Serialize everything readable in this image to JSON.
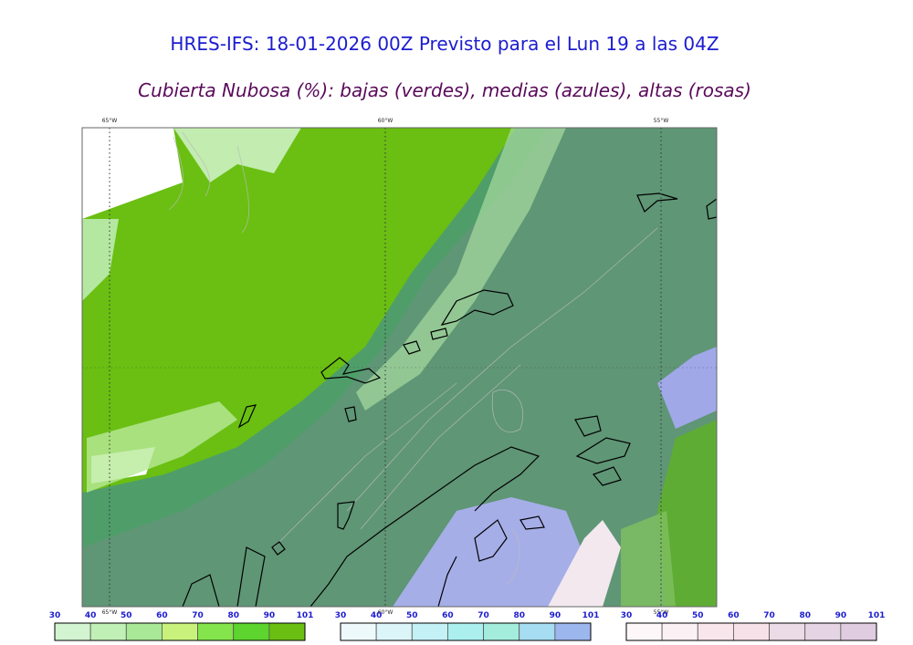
{
  "header": {
    "title": "HRES-IFS: 18-01-2026 00Z Previsto para el Lun 19 a las 04Z",
    "subtitle": "Cubierta Nubosa (%): bajas (verdes), medias (azules), altas (rosas)"
  },
  "map": {
    "lon_labels_top": [
      "65°W",
      "60°W",
      "55°W"
    ],
    "lon_labels_bottom": [
      "65°W",
      "60°W",
      "55°W"
    ]
  },
  "colorbars": [
    {
      "ticks": [
        30,
        40,
        50,
        60,
        70,
        80,
        90,
        101
      ],
      "colors": [
        "#d2f4d0",
        "#c0f0b6",
        "#a8e896",
        "#c8f27c",
        "#84e44c",
        "#5ed42e",
        "#6abf12"
      ]
    },
    {
      "ticks": [
        30,
        40,
        50,
        60,
        70,
        80,
        90,
        101
      ],
      "colors": [
        "#eef9fc",
        "#dcf5f8",
        "#c4f1f5",
        "#acefef",
        "#a4ecdc",
        "#a6ddf2",
        "#9cb6ee"
      ]
    },
    {
      "ticks": [
        30,
        40,
        50,
        60,
        70,
        80,
        90,
        101
      ],
      "colors": [
        "#fdf7f9",
        "#fbf0f3",
        "#f8e6ec",
        "#f7e1e8",
        "#ebdbe6",
        "#e5d5e4",
        "#e0cce0"
      ]
    }
  ]
}
